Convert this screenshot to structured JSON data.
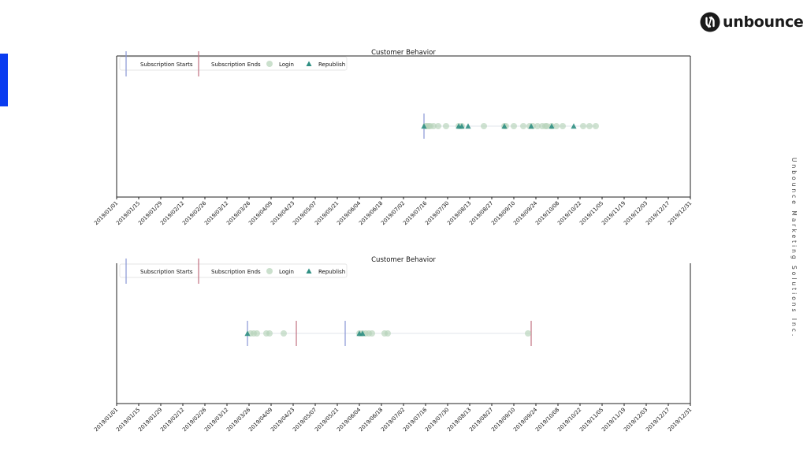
{
  "brand": {
    "name": "unbounce",
    "side_text": "Unbounce Marketing Solutions Inc.",
    "accent_color": "#0a3cf0",
    "logo_color": "#1a1a1a"
  },
  "chart_data": [
    {
      "type": "scatter",
      "title": "Customer Behavior",
      "xlabel": "",
      "ylabel": "",
      "xlim": [
        "2019-01-01",
        "2019-12-31"
      ],
      "x_ticks": [
        "2019/01/01",
        "2019/01/15",
        "2019/01/29",
        "2019/02/12",
        "2019/02/26",
        "2019/03/12",
        "2019/03/26",
        "2019/04/09",
        "2019/04/23",
        "2019/05/07",
        "2019/05/21",
        "2019/06/04",
        "2019/06/18",
        "2019/07/02",
        "2019/07/16",
        "2019/07/30",
        "2019/08/13",
        "2019/08/27",
        "2019/09/10",
        "2019/09/24",
        "2019/10/08",
        "2019/10/22",
        "2019/11/05",
        "2019/11/19",
        "2019/12/03",
        "2019/12/17",
        "2019/12/31"
      ],
      "legend": {
        "placement": "top-left",
        "entries": [
          {
            "label": "Subscription Starts",
            "marker": "vline",
            "color": "#8896d6"
          },
          {
            "label": "Subscription Ends",
            "marker": "vline",
            "color": "#c07080"
          },
          {
            "label": "Login",
            "marker": "circle",
            "color": "#b5d3b8"
          },
          {
            "label": "Republish",
            "marker": "triangle",
            "color": "#2f8f83"
          }
        ]
      },
      "subscription_starts": [
        "2019-07-15"
      ],
      "subscription_ends": [],
      "logins": [
        "2019-07-16",
        "2019-07-17",
        "2019-07-18",
        "2019-07-19",
        "2019-07-21",
        "2019-07-24",
        "2019-07-29",
        "2019-08-06",
        "2019-08-08",
        "2019-08-22",
        "2019-09-04",
        "2019-09-05",
        "2019-09-10",
        "2019-09-16",
        "2019-09-20",
        "2019-09-22",
        "2019-09-25",
        "2019-09-28",
        "2019-09-30",
        "2019-10-01",
        "2019-10-04",
        "2019-10-07",
        "2019-10-11",
        "2019-10-24",
        "2019-10-28",
        "2019-11-01"
      ],
      "republish": [
        "2019-07-15",
        "2019-08-06",
        "2019-08-08",
        "2019-08-12",
        "2019-09-04",
        "2019-09-21",
        "2019-10-04",
        "2019-10-18"
      ]
    },
    {
      "type": "scatter",
      "title": "Customer Behavior",
      "xlabel": "",
      "ylabel": "",
      "xlim": [
        "2019-01-01",
        "2019-12-31"
      ],
      "x_ticks": [
        "2019/01/01",
        "2019/01/15",
        "2019/01/29",
        "2019/02/12",
        "2019/02/26",
        "2019/03/12",
        "2019/03/26",
        "2019/04/09",
        "2019/04/23",
        "2019/05/07",
        "2019/05/21",
        "2019/06/04",
        "2019/06/18",
        "2019/07/02",
        "2019/07/16",
        "2019/07/30",
        "2019/08/13",
        "2019/08/27",
        "2019/09/10",
        "2019/09/24",
        "2019/10/08",
        "2019/10/22",
        "2019/11/05",
        "2019/11/19",
        "2019/12/03",
        "2019/12/17",
        "2019/12/31"
      ],
      "legend": {
        "placement": "top-left",
        "entries": [
          {
            "label": "Subscription Starts",
            "marker": "vline",
            "color": "#8896d6"
          },
          {
            "label": "Subscription Ends",
            "marker": "vline",
            "color": "#c07080"
          },
          {
            "label": "Login",
            "marker": "circle",
            "color": "#b5d3b8"
          },
          {
            "label": "Republish",
            "marker": "triangle",
            "color": "#2f8f83"
          }
        ]
      },
      "subscription_starts": [
        "2019-03-25",
        "2019-05-26"
      ],
      "subscription_ends": [
        "2019-04-25",
        "2019-09-21"
      ],
      "logins": [
        "2019-03-27",
        "2019-03-29",
        "2019-03-31",
        "2019-04-06",
        "2019-04-08",
        "2019-04-17",
        "2019-06-04",
        "2019-06-06",
        "2019-06-08",
        "2019-06-10",
        "2019-06-12",
        "2019-06-20",
        "2019-06-22",
        "2019-09-19"
      ],
      "republish": [
        "2019-03-25",
        "2019-06-04",
        "2019-06-06"
      ]
    }
  ]
}
